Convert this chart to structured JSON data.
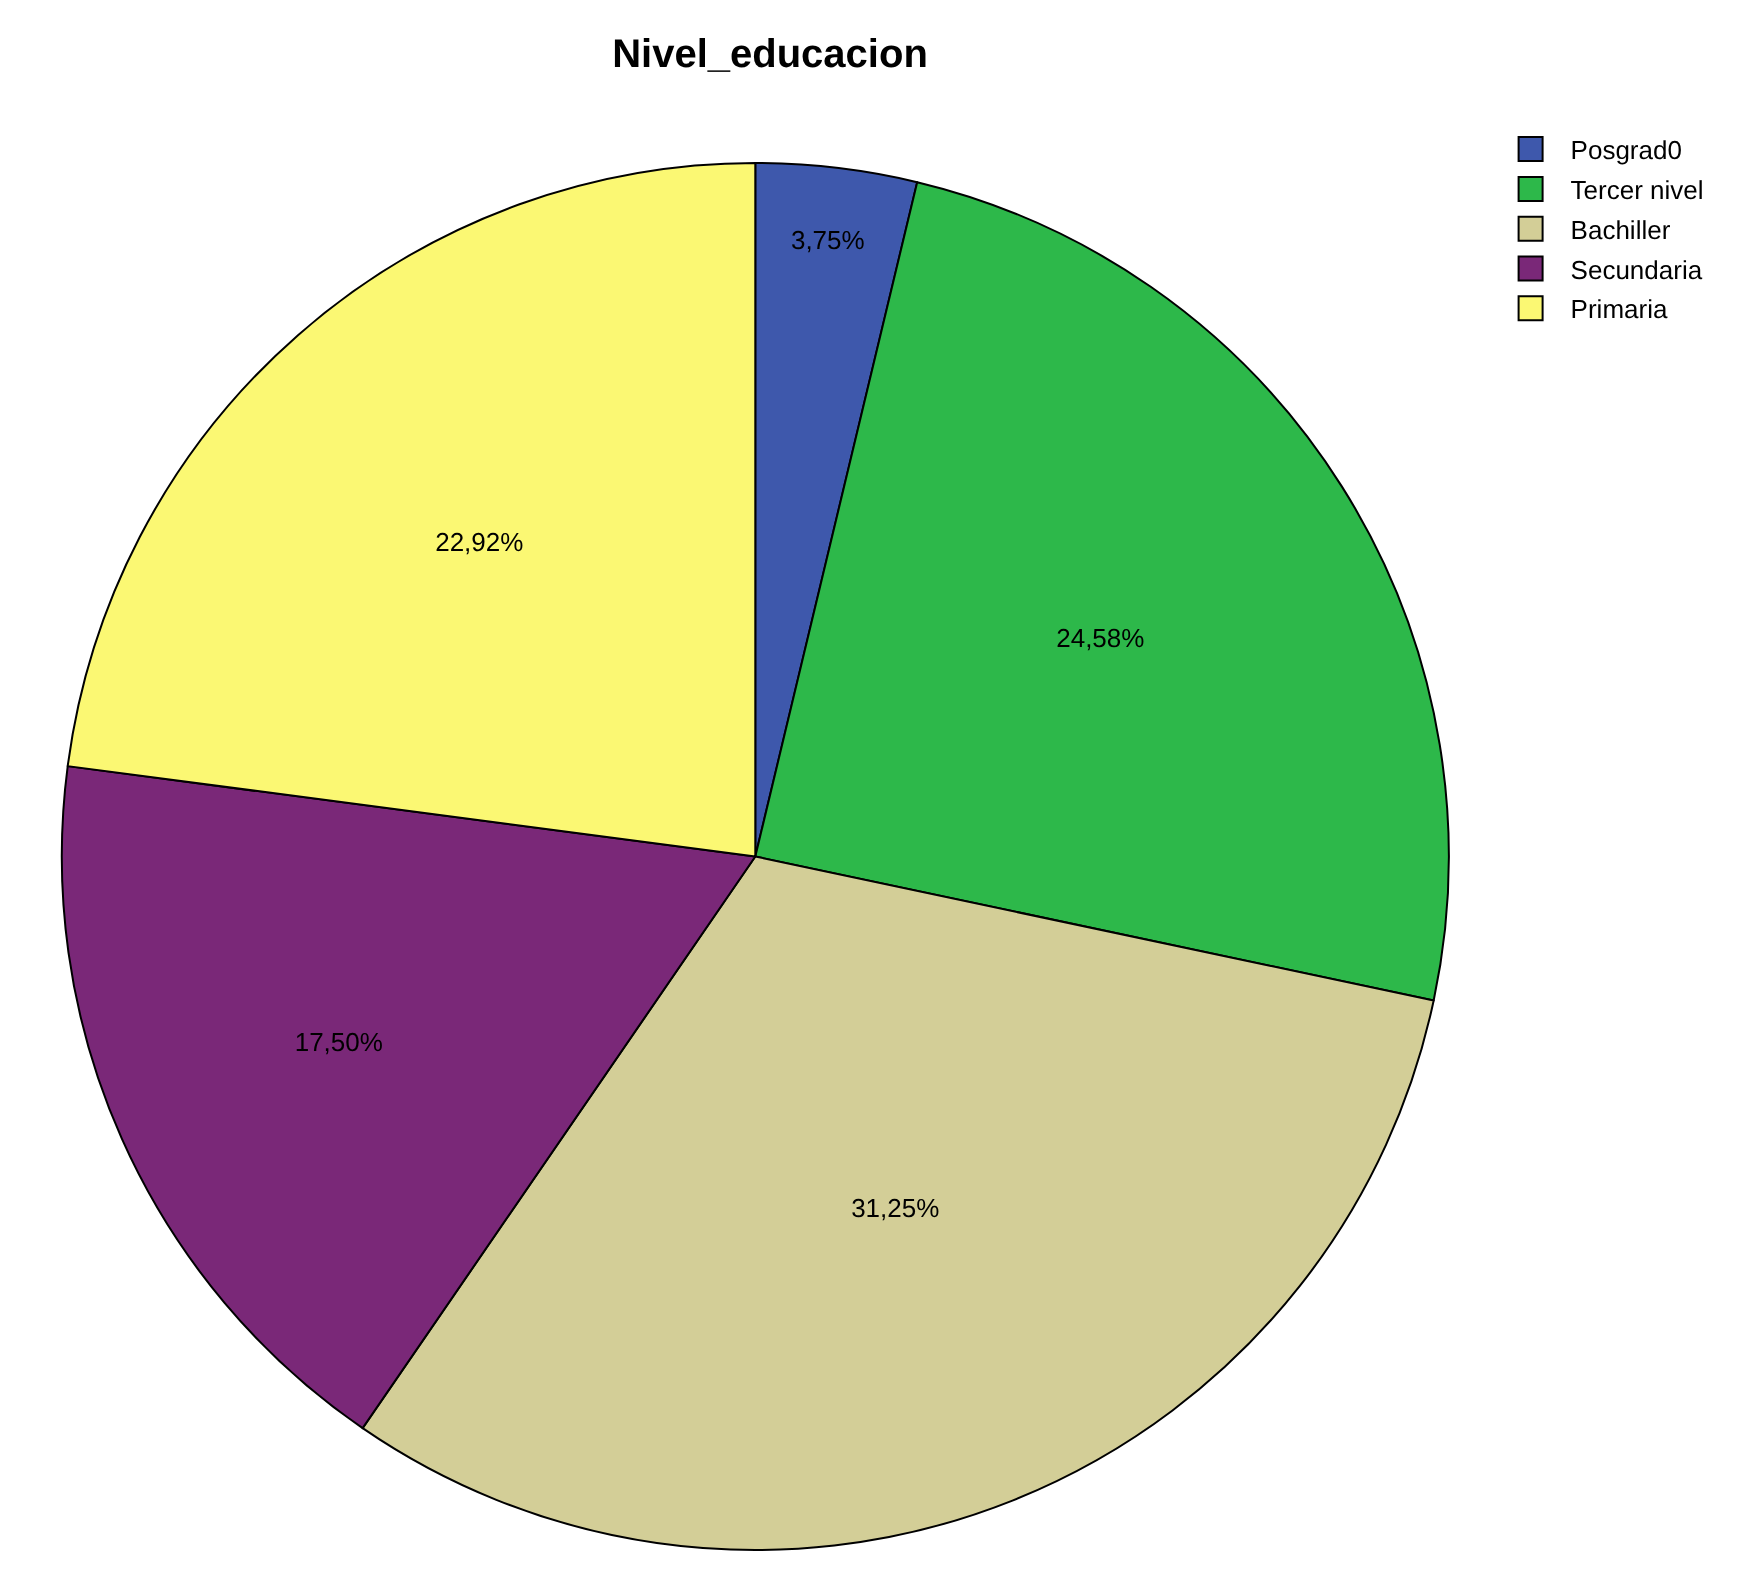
{
  "chart_data": {
    "type": "pie",
    "title": "Nivel_educacion",
    "categories": [
      "Posgrad0",
      "Tercer nivel",
      "Bachiller",
      "Secundaria",
      "Primaria"
    ],
    "values": [
      3.75,
      24.58,
      31.25,
      17.5,
      22.92
    ],
    "value_labels": [
      "3,75%",
      "24,58%",
      "31,25%",
      "17,50%",
      "22,92%"
    ],
    "colors": [
      "#3e58ac",
      "#2db84a",
      "#d3ce97",
      "#7a2878",
      "#fbf873"
    ],
    "legend": "top right"
  }
}
